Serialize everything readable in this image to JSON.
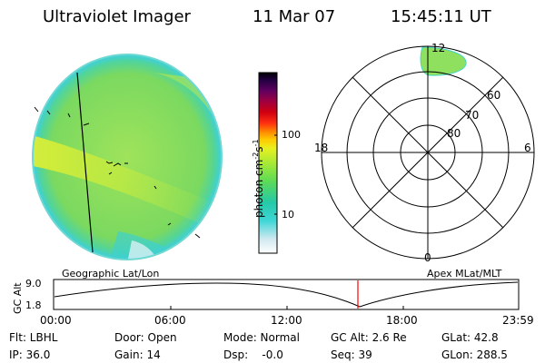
{
  "header": {
    "title": "Ultraviolet Imager",
    "date": "11 Mar 07",
    "time": "15:45:11 UT"
  },
  "colorbar": {
    "unit_label": "photon cm",
    "unit_exp1": "-2",
    "unit_s": "s",
    "unit_exp2": "-1",
    "tick_100": "100",
    "tick_10": "10",
    "colors": [
      "#ffffff",
      "#cfe8f0",
      "#3ed6d6",
      "#24c9a8",
      "#5edb55",
      "#a8ea35",
      "#e8f020",
      "#ffc800",
      "#ff8c00",
      "#ff3010",
      "#d00010",
      "#a00040",
      "#600060",
      "#200040",
      "#000000"
    ]
  },
  "polar_plot": {
    "mlt_labels": {
      "top": "12",
      "left": "18",
      "right": "6",
      "bottom": "0"
    },
    "lat_labels": [
      "60",
      "70",
      "80"
    ]
  },
  "timeline": {
    "left_label": "Geographic Lat/Lon",
    "right_label": "Apex MLat/MLT",
    "axis_title": "GC Alt",
    "y_ticks": [
      "9.0",
      "1.8"
    ],
    "x_ticks": [
      "00:00",
      "06:00",
      "12:00",
      "18:00",
      "23:59"
    ]
  },
  "status": {
    "row1": [
      {
        "label": "Flt: LBHL"
      },
      {
        "label": "Door: Open"
      },
      {
        "label": "Mode: Normal"
      },
      {
        "label": "GC Alt: 2.6 Re"
      },
      {
        "label": "GLat:  42.8"
      }
    ],
    "row2": [
      {
        "label": "IP: 36.0"
      },
      {
        "label": "Gain: 14"
      },
      {
        "label": "Dsp:    -0.0"
      },
      {
        "label": "Seq: 39"
      },
      {
        "label": "GLon: 288.5"
      }
    ]
  },
  "colors": {
    "disk_base": "#8fe05a",
    "band_bright": "#d8ee3a",
    "disk_edge": "#44d6c8",
    "marker": "#ff0000"
  }
}
